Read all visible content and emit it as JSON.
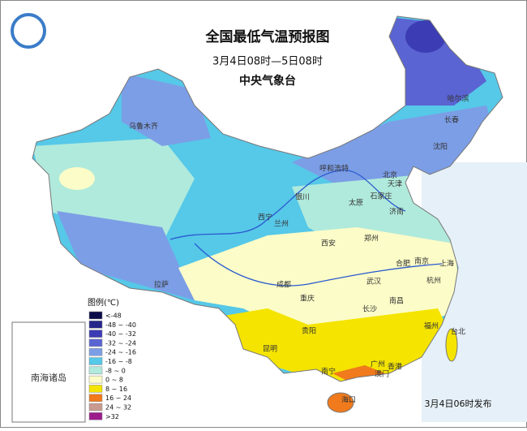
{
  "header": {
    "title": "全国最低气温预报图",
    "period": "3月4日08时—5日08时",
    "agency": "中央气象台"
  },
  "legend": {
    "title": "图例(℃)",
    "items": [
      {
        "label": "<-48",
        "color": "#0c0c4a"
      },
      {
        "label": "-48 ~ -40",
        "color": "#26268a"
      },
      {
        "label": "-40 ~ -32",
        "color": "#3c3cb4"
      },
      {
        "label": "-32 ~ -24",
        "color": "#5a64d2"
      },
      {
        "label": "-24 ~ -16",
        "color": "#7c9ee6"
      },
      {
        "label": "-16 ~ -8",
        "color": "#56c8e8"
      },
      {
        "label": "-8 ~ 0",
        "color": "#b0eadc"
      },
      {
        "label": "0 ~ 8",
        "color": "#fcfcc8"
      },
      {
        "label": "8 ~ 16",
        "color": "#f4e400"
      },
      {
        "label": "16 ~ 24",
        "color": "#f07a1c"
      },
      {
        "label": "24 ~ 32",
        "color": "#c89a90"
      },
      {
        "label": ">32",
        "color": "#9c1c8c"
      }
    ]
  },
  "cities": [
    "乌鲁木齐",
    "哈尔滨",
    "长春",
    "沈阳",
    "呼和浩特",
    "北京",
    "天津",
    "银川",
    "太原",
    "石家庄",
    "西宁",
    "兰州",
    "济南",
    "西安",
    "郑州",
    "合肥",
    "南京",
    "上海",
    "拉萨",
    "成都",
    "武汉",
    "杭州",
    "重庆",
    "长沙",
    "南昌",
    "福州",
    "台北",
    "贵阳",
    "昆明",
    "南宁",
    "广州",
    "香港",
    "澳门",
    "海口"
  ],
  "inset_label": "南海诸岛",
  "issued": "3月4日06时发布"
}
